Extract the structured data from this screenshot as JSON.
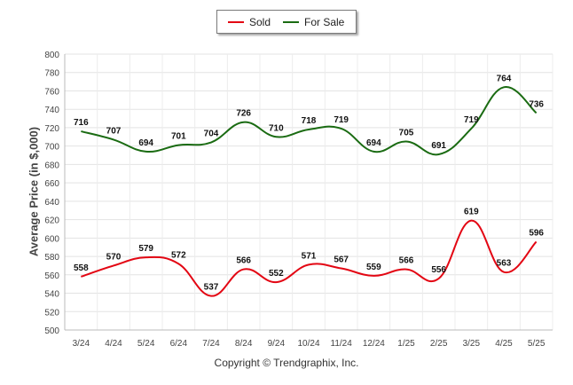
{
  "chart_data": {
    "type": "line",
    "categories": [
      "3/24",
      "4/24",
      "5/24",
      "6/24",
      "7/24",
      "8/24",
      "9/24",
      "10/24",
      "11/24",
      "12/24",
      "1/25",
      "2/25",
      "3/25",
      "4/25",
      "5/25"
    ],
    "series": [
      {
        "name": "Sold",
        "color": "#e30613",
        "values": [
          558,
          570,
          579,
          572,
          537,
          566,
          552,
          571,
          567,
          559,
          566,
          556,
          619,
          563,
          596
        ]
      },
      {
        "name": "For Sale",
        "color": "#1a6b12",
        "values": [
          716,
          707,
          694,
          701,
          704,
          726,
          710,
          718,
          719,
          694,
          705,
          691,
          719,
          764,
          736
        ]
      }
    ],
    "ylabel": "Average Price (in $,000)",
    "ylim": [
      500,
      800
    ],
    "yticks": [
      500,
      520,
      540,
      560,
      580,
      600,
      620,
      640,
      660,
      680,
      700,
      720,
      740,
      760,
      780,
      800
    ],
    "grid": true,
    "legend": "top-center"
  },
  "footer": {
    "copyright": "Copyright © Trendgraphix, Inc."
  }
}
